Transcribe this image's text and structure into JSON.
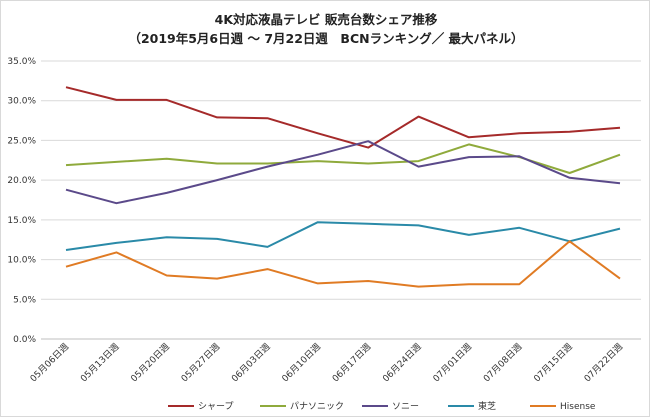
{
  "chart_data": {
    "type": "line",
    "title": "4K対応液晶テレビ 販売台数シェア推移",
    "subtitle": "（2019年5月6日週 ～ 7月22日週　BCNランキング／ 最大パネル）",
    "xlabel": "",
    "ylabel": "",
    "categories": [
      "05月06日週",
      "05月13日週",
      "05月20日週",
      "05月27日週",
      "06月03日週",
      "06月10日週",
      "06月17日週",
      "06月24日週",
      "07月01日週",
      "07月08日週",
      "07月15日週",
      "07月22日週"
    ],
    "y_ticks": [
      "0.0%",
      "5.0%",
      "10.0%",
      "15.0%",
      "20.0%",
      "25.0%",
      "30.0%",
      "35.0%"
    ],
    "ylim": [
      0,
      35
    ],
    "grid": true,
    "legend_position": "bottom",
    "series": [
      {
        "name": "シャープ",
        "color": "#a52a2a",
        "values": [
          31.7,
          30.1,
          30.1,
          27.9,
          27.8,
          25.9,
          24.1,
          28.0,
          25.4,
          25.9,
          26.1,
          26.6
        ]
      },
      {
        "name": "パナソニック",
        "color": "#8faa3c",
        "values": [
          21.9,
          22.3,
          22.7,
          22.1,
          22.1,
          22.4,
          22.1,
          22.4,
          24.5,
          22.9,
          20.9,
          23.2
        ]
      },
      {
        "name": "ソニー",
        "color": "#5b4a8a",
        "values": [
          18.8,
          17.1,
          18.4,
          20.0,
          21.7,
          23.2,
          24.9,
          21.7,
          22.9,
          23.0,
          20.3,
          19.6
        ]
      },
      {
        "name": "東芝",
        "color": "#2a8aa8",
        "values": [
          11.2,
          12.1,
          12.8,
          12.6,
          11.6,
          14.7,
          14.5,
          14.3,
          13.1,
          14.0,
          12.3,
          13.9
        ]
      },
      {
        "name": "Hisense",
        "color": "#e07b24",
        "values": [
          9.1,
          10.9,
          8.0,
          7.6,
          8.8,
          7.0,
          7.3,
          6.6,
          6.9,
          6.9,
          12.3,
          7.6
        ]
      }
    ]
  }
}
